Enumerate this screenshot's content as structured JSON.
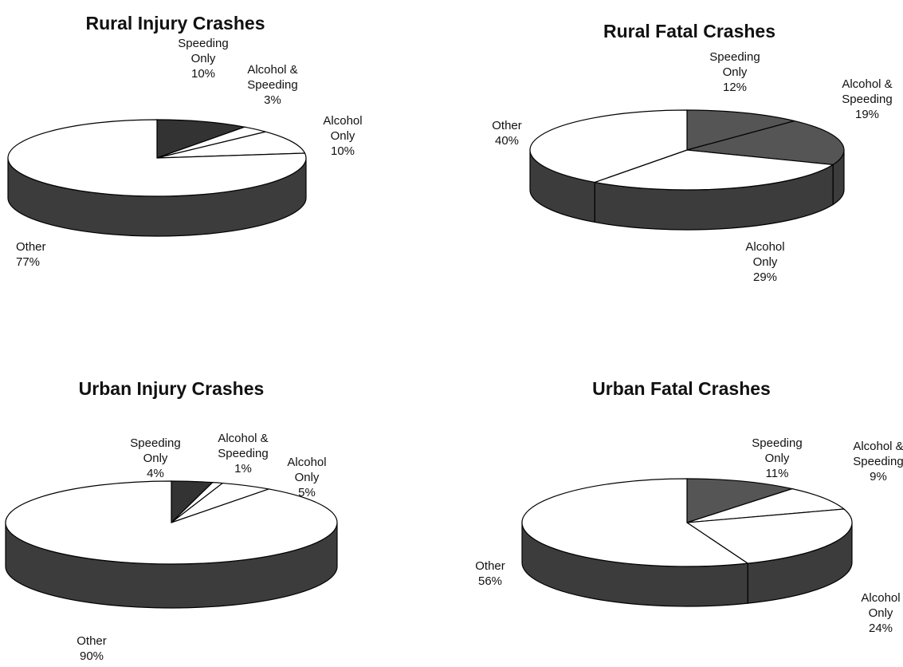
{
  "chart_data": [
    {
      "type": "pie",
      "title": "Rural Injury Crashes",
      "categories": [
        "Speeding Only",
        "Alcohol & Speeding",
        "Alcohol Only",
        "Other"
      ],
      "values": [
        10,
        3,
        10,
        77
      ],
      "value_labels": [
        "10%",
        "3%",
        "10%",
        "77%"
      ],
      "colors": [
        "#333333",
        "#ffffff",
        "#ffffff",
        "#ffffff"
      ]
    },
    {
      "type": "pie",
      "title": "Rural Fatal Crashes",
      "categories": [
        "Speeding Only",
        "Alcohol & Speeding",
        "Alcohol Only",
        "Other"
      ],
      "values": [
        12,
        19,
        29,
        40
      ],
      "value_labels": [
        "12%",
        "19%",
        "29%",
        "40%"
      ],
      "colors": [
        "#555555",
        "#555555",
        "#ffffff",
        "#ffffff"
      ]
    },
    {
      "type": "pie",
      "title": "Urban Injury Crashes",
      "categories": [
        "Speeding Only",
        "Alcohol & Speeding",
        "Alcohol Only",
        "Other"
      ],
      "values": [
        4,
        1,
        5,
        90
      ],
      "value_labels": [
        "4%",
        "1%",
        "5%",
        "90%"
      ],
      "colors": [
        "#333333",
        "#ffffff",
        "#ffffff",
        "#ffffff"
      ]
    },
    {
      "type": "pie",
      "title": "Urban Fatal Crashes",
      "categories": [
        "Speeding Only",
        "Alcohol & Speeding",
        "Alcohol Only",
        "Other"
      ],
      "values": [
        11,
        9,
        24,
        56
      ],
      "value_labels": [
        "11%",
        "9%",
        "24%",
        "56%"
      ],
      "colors": [
        "#555555",
        "#ffffff",
        "#ffffff",
        "#ffffff"
      ]
    }
  ]
}
